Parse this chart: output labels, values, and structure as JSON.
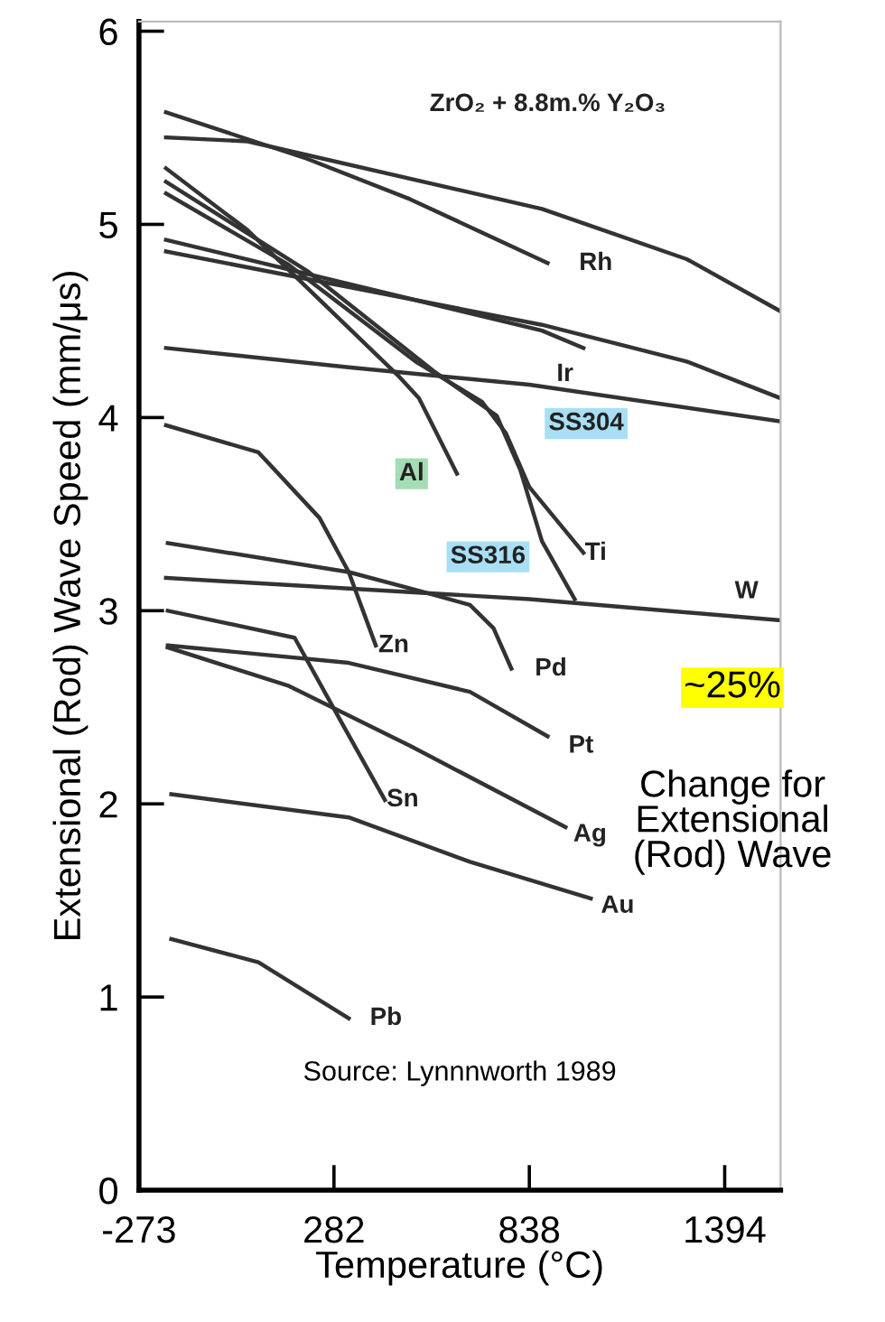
{
  "chart_data": {
    "type": "line",
    "xlabel": "Temperature (°C)",
    "ylabel": "Extensional (Rod) Wave Speed (mm/μs)",
    "xlim": [
      -273,
      1553
    ],
    "ylim": [
      0,
      6.05
    ],
    "xticks": [
      -273,
      282,
      838,
      1394
    ],
    "yticks": [
      0,
      1,
      2,
      3,
      4,
      5,
      6
    ],
    "grid": false,
    "marker": "none",
    "line_style": "solid",
    "series": [
      {
        "color": "#333333",
        "x": [
          -196,
          36,
          874,
          1286,
          1553
        ],
        "values": [
          5.45,
          5.43,
          5.08,
          4.82,
          4.55
        ]
      },
      {
        "color": "#333333",
        "x": [
          -196,
          205,
          499,
          890
        ],
        "values": [
          5.58,
          5.34,
          5.13,
          4.8
        ]
      },
      {
        "color": "#333333",
        "x": [
          -196,
          874,
          992
        ],
        "values": [
          4.92,
          4.45,
          4.36
        ]
      },
      {
        "color": "#333333",
        "x": [
          -196,
          874,
          1286,
          1553
        ],
        "values": [
          4.86,
          4.48,
          4.29,
          4.1
        ]
      },
      {
        "color": "#333333",
        "x": [
          -196,
          324,
          838,
          1553
        ],
        "values": [
          4.36,
          4.26,
          4.17,
          3.98
        ]
      },
      {
        "color": "#333333",
        "x": [
          -196,
          838,
          1553
        ],
        "values": [
          3.17,
          3.06,
          2.95
        ]
      },
      {
        "color": "#333333",
        "x": [
          -191,
          324,
          530,
          669,
          736,
          787
        ],
        "values": [
          3.35,
          3.2,
          3.1,
          3.03,
          2.91,
          2.7
        ]
      },
      {
        "color": "#333333",
        "x": [
          -196,
          67,
          241,
          324,
          401
        ],
        "values": [
          3.96,
          3.82,
          3.48,
          3.2,
          2.82
        ]
      },
      {
        "color": "#333333",
        "x": [
          -191,
          324,
          669,
          890
        ],
        "values": [
          2.82,
          2.73,
          2.58,
          2.35
        ]
      },
      {
        "color": "#333333",
        "x": [
          -191,
          154,
          499,
          941
        ],
        "values": [
          2.81,
          2.61,
          2.3,
          1.88
        ]
      },
      {
        "color": "#333333",
        "x": [
          -191,
          170,
          304,
          427
        ],
        "values": [
          3.0,
          2.86,
          2.42,
          2.02
        ]
      },
      {
        "color": "#333333",
        "x": [
          -181,
          324,
          669,
          1013
        ],
        "values": [
          2.05,
          1.93,
          1.7,
          1.51
        ]
      },
      {
        "color": "#333333",
        "x": [
          -181,
          67,
          324
        ],
        "values": [
          1.3,
          1.18,
          0.89
        ]
      },
      {
        "color": "#333333",
        "x": [
          -196,
          36,
          463,
          524,
          632
        ],
        "values": [
          5.29,
          4.97,
          4.22,
          4.1,
          3.71
        ]
      },
      {
        "color": "#333333",
        "x": [
          -196,
          154,
          514,
          704,
          771,
          838,
          992
        ],
        "values": [
          5.16,
          4.79,
          4.29,
          4.08,
          3.92,
          3.64,
          3.3
        ]
      },
      {
        "color": "#333333",
        "x": [
          -196,
          205,
          566,
          745,
          812,
          874,
          967
        ],
        "values": [
          5.22,
          4.76,
          4.24,
          4.01,
          3.73,
          3.36,
          3.06
        ]
      }
    ],
    "annotations": [
      "ZrO₂ + 8.8m.% Y₂O₃",
      "Rh",
      "Ir",
      "SS304",
      "Al",
      "Ti",
      "SS316",
      "W",
      "Zn",
      "Pd",
      "Pt",
      "Ag",
      "Sn",
      "Au",
      "Pb",
      "~25%",
      "Change for Extensional (Rod) Wave",
      "Source: Lynnnworth 1989"
    ]
  }
}
